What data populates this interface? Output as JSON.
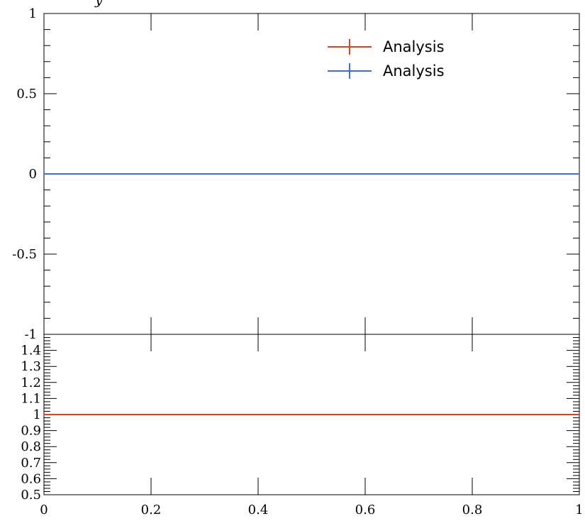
{
  "chart_data": [
    {
      "type": "line",
      "panel": "main",
      "ylabel": "y",
      "xlim": [
        0,
        1
      ],
      "ylim": [
        -1,
        1
      ],
      "yticks": [
        -1,
        -0.5,
        0,
        0.5,
        1
      ],
      "ytick_labels": [
        "-1",
        "-0.5",
        "0",
        "0.5",
        "1"
      ],
      "xticks": [
        0,
        0.2,
        0.4,
        0.6,
        0.8,
        1
      ],
      "legend_position": "top-right",
      "series": [
        {
          "name": "Analysis",
          "color": "#e8401c",
          "x": [
            0,
            1
          ],
          "y": [
            0,
            0
          ]
        },
        {
          "name": "Analysis",
          "color": "#3a6fe0",
          "x": [
            0,
            1
          ],
          "y": [
            0,
            0
          ]
        }
      ]
    },
    {
      "type": "line",
      "panel": "ratio",
      "xlim": [
        0,
        1
      ],
      "ylim": [
        0.5,
        1.5
      ],
      "yticks": [
        0.5,
        0.6,
        0.7,
        0.8,
        0.9,
        1,
        1.1,
        1.2,
        1.3,
        1.4
      ],
      "ytick_labels": [
        "0.5",
        "0.6",
        "0.7",
        "0.8",
        "0.9",
        "1",
        "1.1",
        "1.2",
        "1.3",
        "1.4"
      ],
      "xticks": [
        0,
        0.2,
        0.4,
        0.6,
        0.8,
        1
      ],
      "xtick_labels": [
        "0",
        "0.2",
        "0.4",
        "0.6",
        "0.8",
        "1"
      ],
      "series": [
        {
          "color": "#e8401c",
          "x": [
            0,
            1
          ],
          "y": [
            1,
            1
          ]
        }
      ]
    }
  ]
}
